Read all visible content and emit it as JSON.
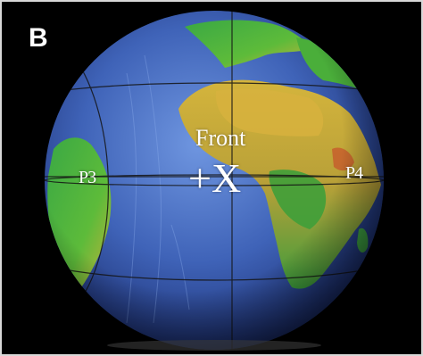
{
  "figure": {
    "panel_letter": "B",
    "labels": {
      "front": "Front",
      "axis": "+X",
      "p3": "P3",
      "p4": "P4"
    }
  },
  "colors": {
    "background": "#000000",
    "ocean_light": "#5a7fd0",
    "ocean_dark": "#223a8a",
    "land_green": "#2fa03c",
    "land_yellow": "#cfb23a",
    "land_red": "#c8502a",
    "grid_line": "#111111",
    "text": "#ffffff"
  }
}
